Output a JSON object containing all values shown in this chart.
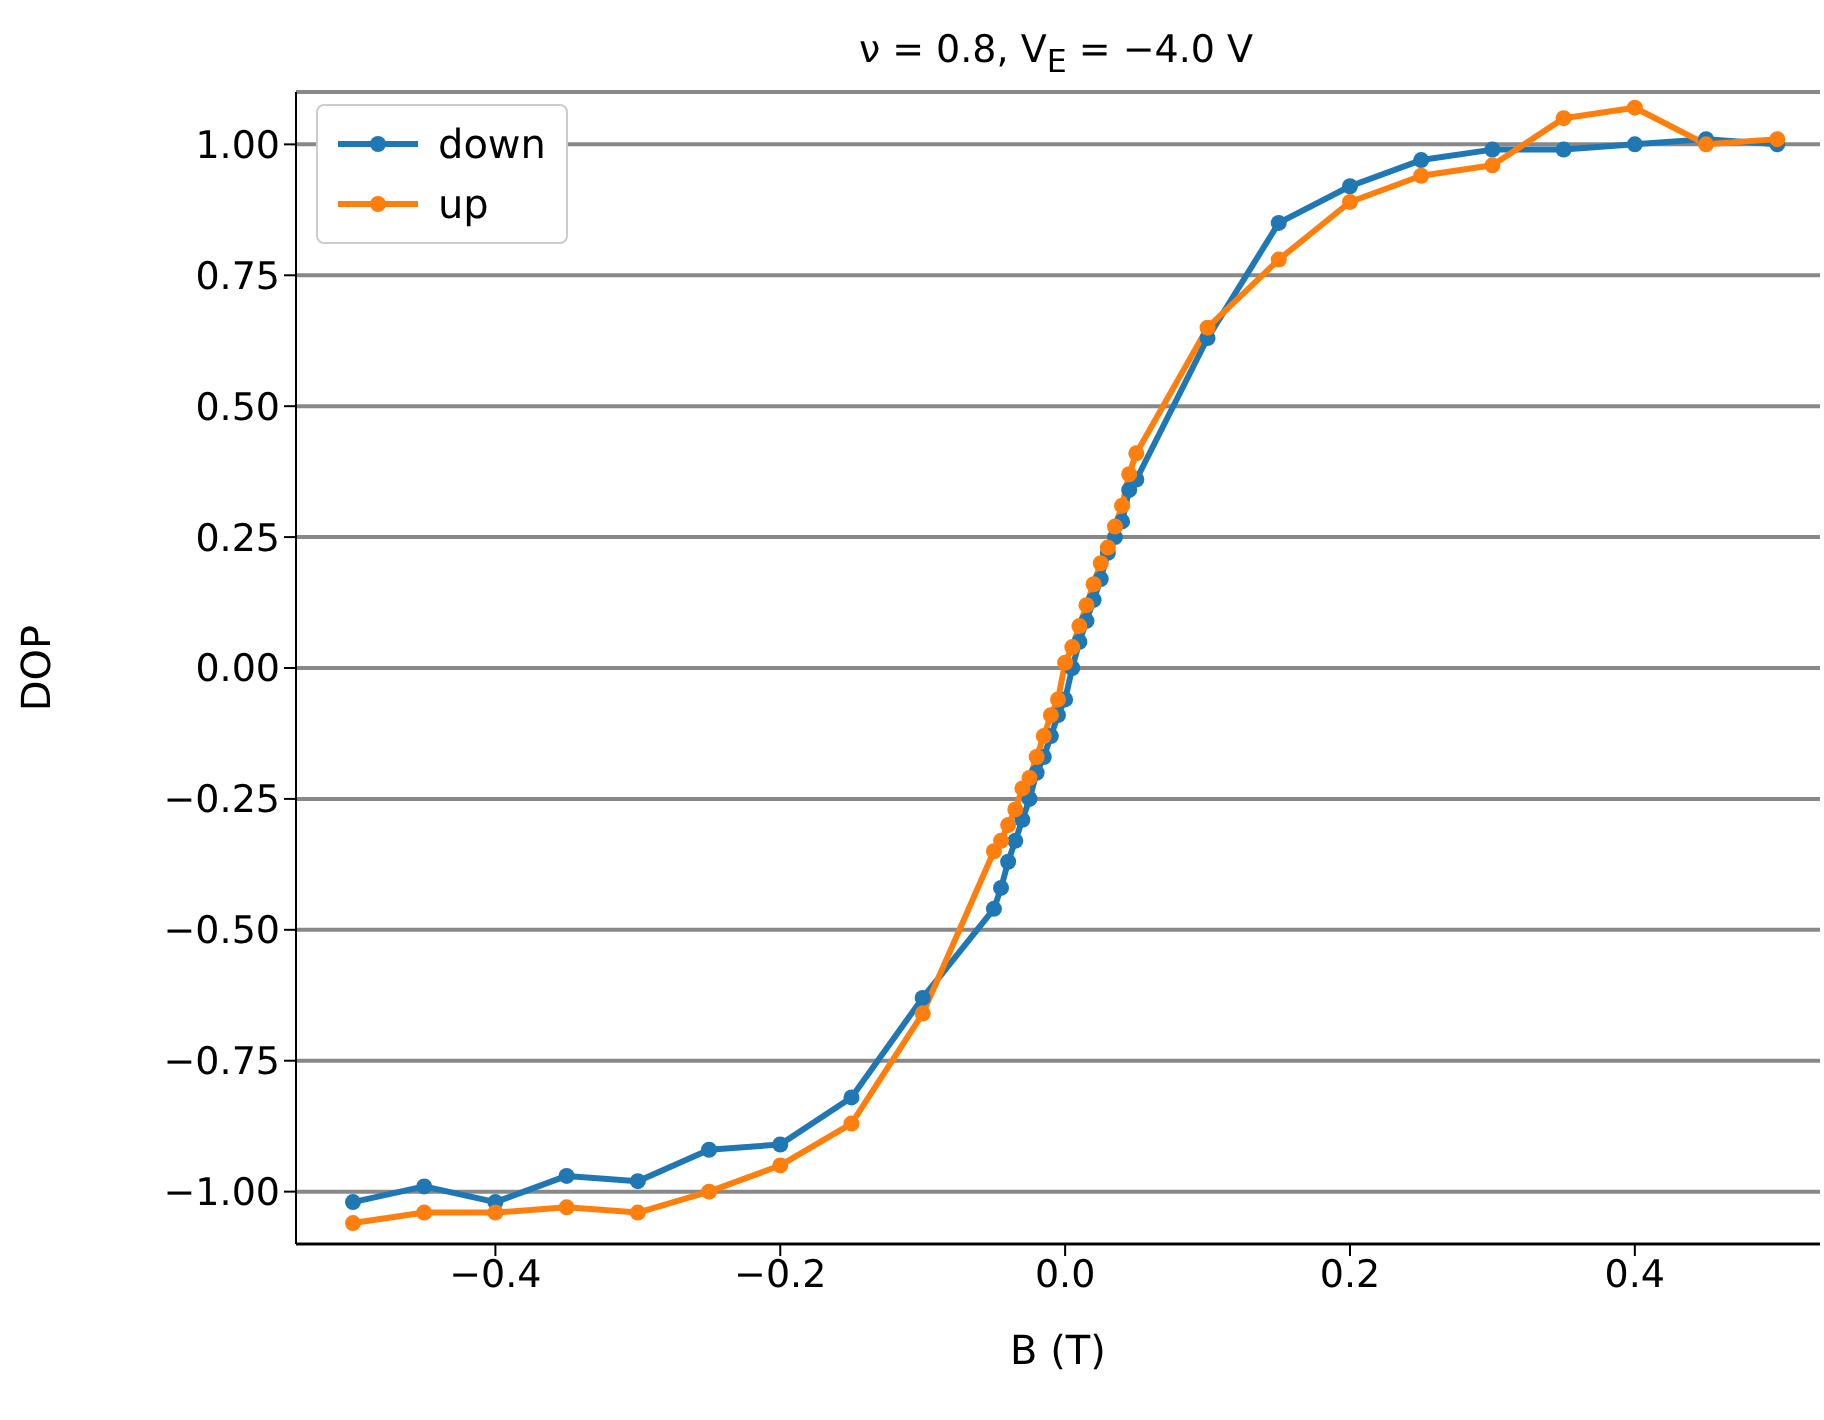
{
  "chart_data": {
    "type": "line",
    "title": "ν = 0.8, V$_{E}$ = −4.0 V",
    "xlabel": "B (T)",
    "ylabel": "DOP",
    "xlim": [
      -0.54,
      0.53
    ],
    "xticks": [
      {
        "value": -0.4,
        "label": "−0.4"
      },
      {
        "value": -0.2,
        "label": "−0.2"
      },
      {
        "value": 0,
        "label": "0.0"
      },
      {
        "value": 0.2,
        "label": "0.2"
      },
      {
        "value": 0.4,
        "label": "0.4"
      }
    ],
    "ylim": [
      -1.1,
      1.1
    ],
    "yticks": [
      {
        "value": -1,
        "label": "−1.00"
      },
      {
        "value": -0.75,
        "label": "−0.75"
      },
      {
        "value": -0.5,
        "label": "−0.50"
      },
      {
        "value": -0.25,
        "label": "−0.25"
      },
      {
        "value": 0,
        "label": "0.00"
      },
      {
        "value": 0.25,
        "label": "0.25"
      },
      {
        "value": 0.5,
        "label": "0.50"
      },
      {
        "value": 0.75,
        "label": "0.75"
      },
      {
        "value": 1,
        "label": "1.00"
      }
    ],
    "grid": "y",
    "legend": "top left",
    "marker": "circle",
    "line_style": "solid",
    "series": [
      {
        "name": "down",
        "color": "#1f77b4",
        "x": [
          -0.5,
          -0.45,
          -0.4,
          -0.35,
          -0.3,
          -0.25,
          -0.2,
          -0.15,
          -0.1,
          -0.05,
          -0.045,
          -0.04,
          -0.035,
          -0.03,
          -0.025,
          -0.02,
          -0.015,
          -0.01,
          -0.005,
          0,
          0.005,
          0.01,
          0.015,
          0.02,
          0.025,
          0.03,
          0.035,
          0.04,
          0.045,
          0.05,
          0.1,
          0.15,
          0.2,
          0.25,
          0.3,
          0.35,
          0.4,
          0.45,
          0.5
        ],
        "values": [
          -1.02,
          -0.99,
          -1.02,
          -0.97,
          -0.98,
          -0.92,
          -0.91,
          -0.82,
          -0.63,
          -0.46,
          -0.42,
          -0.37,
          -0.33,
          -0.29,
          -0.25,
          -0.2,
          -0.17,
          -0.13,
          -0.09,
          -0.06,
          0.0,
          0.05,
          0.09,
          0.13,
          0.17,
          0.22,
          0.25,
          0.28,
          0.34,
          0.36,
          0.63,
          0.85,
          0.92,
          0.97,
          0.99,
          0.99,
          1.0,
          1.01,
          1.0
        ]
      },
      {
        "name": "up",
        "color": "#ff7f0e",
        "x": [
          -0.5,
          -0.45,
          -0.4,
          -0.35,
          -0.3,
          -0.25,
          -0.2,
          -0.15,
          -0.1,
          -0.05,
          -0.045,
          -0.04,
          -0.035,
          -0.03,
          -0.025,
          -0.02,
          -0.015,
          -0.01,
          -0.005,
          0,
          0.005,
          0.01,
          0.015,
          0.02,
          0.025,
          0.03,
          0.035,
          0.04,
          0.045,
          0.05,
          0.1,
          0.15,
          0.2,
          0.25,
          0.3,
          0.35,
          0.4,
          0.45,
          0.5
        ],
        "values": [
          -1.06,
          -1.04,
          -1.04,
          -1.03,
          -1.04,
          -1.0,
          -0.95,
          -0.87,
          -0.66,
          -0.35,
          -0.33,
          -0.3,
          -0.27,
          -0.23,
          -0.21,
          -0.17,
          -0.13,
          -0.09,
          -0.06,
          0.01,
          0.04,
          0.08,
          0.12,
          0.16,
          0.2,
          0.23,
          0.27,
          0.31,
          0.37,
          0.41,
          0.65,
          0.78,
          0.89,
          0.94,
          0.96,
          1.05,
          1.07,
          1.0,
          1.01
        ]
      }
    ]
  }
}
